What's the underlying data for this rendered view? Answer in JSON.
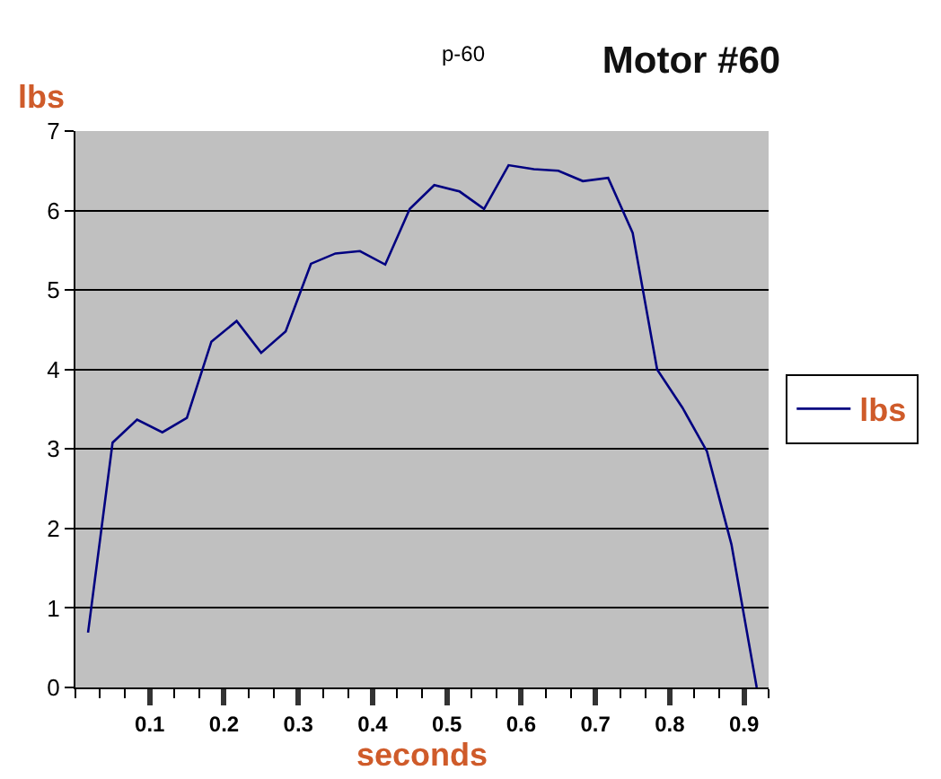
{
  "chart_data": {
    "type": "line",
    "title": "Motor #60",
    "subtitle": "p-60",
    "xlabel": "seconds",
    "ylabel": "lbs",
    "x": [
      0.017,
      0.05,
      0.083,
      0.117,
      0.15,
      0.183,
      0.217,
      0.25,
      0.283,
      0.317,
      0.35,
      0.383,
      0.417,
      0.45,
      0.483,
      0.517,
      0.55,
      0.583,
      0.617,
      0.65,
      0.683,
      0.717,
      0.75,
      0.783,
      0.817,
      0.85,
      0.883,
      0.917
    ],
    "series": [
      {
        "name": "lbs",
        "color": "#000080",
        "values": [
          0.69,
          3.08,
          3.37,
          3.21,
          3.39,
          4.35,
          4.61,
          4.21,
          4.48,
          5.33,
          5.46,
          5.49,
          5.32,
          6.02,
          6.32,
          6.24,
          6.02,
          6.57,
          6.52,
          6.5,
          6.37,
          6.41,
          5.72,
          4.0,
          3.52,
          2.97,
          1.8,
          0.0
        ]
      }
    ],
    "xlim": [
      0,
      0.933
    ],
    "ylim": [
      0,
      7
    ],
    "xticks": [
      {
        "value": 0,
        "label": null
      },
      {
        "value": 0.033,
        "label": null
      },
      {
        "value": 0.067,
        "label": null
      },
      0.1,
      {
        "value": 0.133,
        "label": null
      },
      {
        "value": 0.167,
        "label": null
      },
      0.2,
      {
        "value": 0.233,
        "label": null
      },
      {
        "value": 0.267,
        "label": null
      },
      0.3,
      {
        "value": 0.333,
        "label": null
      },
      {
        "value": 0.367,
        "label": null
      },
      0.4,
      {
        "value": 0.433,
        "label": null
      },
      {
        "value": 0.467,
        "label": null
      },
      0.5,
      {
        "value": 0.533,
        "label": null
      },
      {
        "value": 0.567,
        "label": null
      },
      0.6,
      {
        "value": 0.633,
        "label": null
      },
      {
        "value": 0.667,
        "label": null
      },
      0.7,
      {
        "value": 0.733,
        "label": null
      },
      {
        "value": 0.767,
        "label": null
      },
      0.8,
      {
        "value": 0.833,
        "label": null
      },
      {
        "value": 0.867,
        "label": null
      },
      0.9,
      {
        "value": 0.933,
        "label": null
      }
    ],
    "yticks": [
      0,
      1,
      2,
      3,
      4,
      5,
      6,
      7
    ],
    "grid": "y",
    "legend": "right",
    "marker": "none",
    "line_style": "solid"
  }
}
